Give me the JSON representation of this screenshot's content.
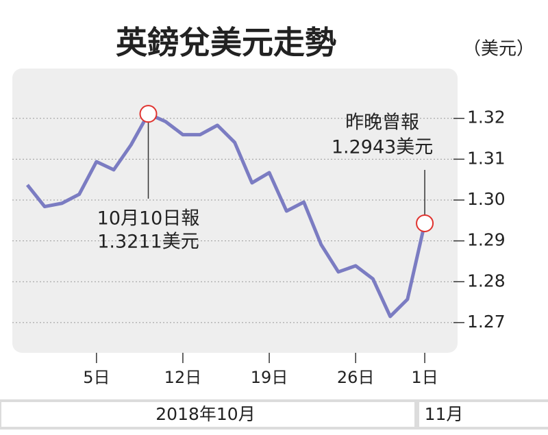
{
  "chart_data": {
    "type": "line",
    "title": "英鎊兌美元走勢",
    "unit": "（美元）",
    "x": [
      0,
      1,
      2,
      3,
      4,
      5,
      6,
      7,
      8,
      9,
      10,
      11,
      12,
      13,
      14,
      15,
      16,
      17,
      18,
      19,
      20,
      21,
      22,
      23
    ],
    "series": [
      {
        "name": "英鎊兌美元",
        "color": "#7b7cc2",
        "values": [
          1.3037,
          1.2984,
          1.2992,
          1.3014,
          1.3094,
          1.3074,
          1.3135,
          1.3211,
          1.3192,
          1.316,
          1.316,
          1.3183,
          1.3141,
          1.3042,
          1.3067,
          1.2973,
          1.2995,
          1.2891,
          1.2824,
          1.2839,
          1.2807,
          1.2715,
          1.2757,
          1.2943
        ]
      }
    ],
    "xlim": [
      -0.87,
      24.9
    ],
    "xticks": [
      {
        "value": 4,
        "label": "5日"
      },
      {
        "value": 9,
        "label": "12日"
      },
      {
        "value": 14,
        "label": "19日"
      },
      {
        "value": 19,
        "label": "26日"
      },
      {
        "value": 23,
        "label": "1日"
      }
    ],
    "ylim": [
      1.2626,
      1.3322
    ],
    "yticks": [
      1.27,
      1.28,
      {
        "value": 1.29,
        "label": "1.29"
      },
      {
        "value": 1.3,
        "label": "1.30"
      },
      1.31,
      1.32
    ],
    "grid": true,
    "annotations": [
      {
        "x": 7,
        "lines": [
          "10月10日報",
          "1.3211美元"
        ]
      },
      {
        "x": 23,
        "lines": [
          "昨晚曾報",
          "1.2943美元"
        ]
      }
    ],
    "periods": [
      "2018年10月",
      "11月"
    ]
  }
}
